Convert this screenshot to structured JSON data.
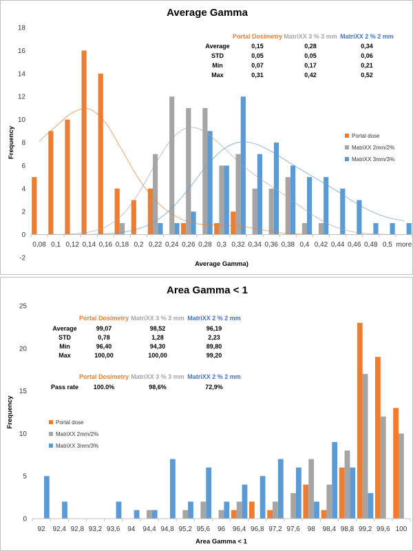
{
  "chart_data": [
    {
      "type": "bar",
      "title": "Average Gamma",
      "xlabel": "Average Gamma)",
      "ylabel": "Frequency",
      "ylim": [
        -2,
        18
      ],
      "yticks": [
        -2,
        0,
        2,
        4,
        6,
        8,
        10,
        12,
        14,
        16,
        18
      ],
      "grid": false,
      "legend_position": "right",
      "categories": [
        "0,08",
        "0,1",
        "0,12",
        "0,14",
        "0,16",
        "0,18",
        "0,2",
        "0,22",
        "0,24",
        "0,26",
        "0,28",
        "0,3",
        "0,32",
        "0,34",
        "0,36",
        "0,38",
        "0,4",
        "0,42",
        "0,44",
        "0,46",
        "0,48",
        "0,5",
        "more"
      ],
      "series": [
        {
          "name": "Portal dose",
          "color": "#ed7d31",
          "values": [
            5,
            9,
            10,
            16,
            14,
            4,
            3,
            4,
            0,
            1,
            0,
            1,
            2,
            0,
            0,
            0,
            0,
            0,
            0,
            0,
            0,
            0,
            0
          ]
        },
        {
          "name": "MatriXX  2mm/2%",
          "color": "#a5a5a5",
          "values": [
            0,
            0,
            0,
            0,
            0,
            1,
            0,
            7,
            12,
            11,
            11,
            6,
            7,
            4,
            4,
            5,
            1,
            1,
            0,
            0,
            0,
            0,
            0
          ]
        },
        {
          "name": "MatriXX 3mm/3%",
          "color": "#5b9bd5",
          "values": [
            0,
            0,
            0,
            0,
            0,
            0,
            0,
            1,
            1,
            2,
            9,
            6,
            12,
            7,
            8,
            6,
            5,
            5,
            4,
            3,
            1,
            1,
            1
          ]
        }
      ],
      "stats_table": {
        "headers": [
          "",
          "Portal Dosimetry",
          "MatriXX 3 % 3 mm",
          "MatriXX 2 % 2 mm"
        ],
        "header_colors": [
          "",
          "#ed7d31",
          "#a5a5a5",
          "#4472c4"
        ],
        "rows": [
          [
            "Average",
            "0,15",
            "0,28",
            "0,34"
          ],
          [
            "STD",
            "0,05",
            "0,05",
            "0,06"
          ],
          [
            "Min",
            "0,07",
            "0,17",
            "0,21"
          ],
          [
            "Max",
            "0,31",
            "0,42",
            "0,52"
          ]
        ]
      }
    },
    {
      "type": "bar",
      "title": "Area Gamma < 1",
      "xlabel": "Area Gamma < 1",
      "ylabel": "Frequency",
      "ylim": [
        0,
        25
      ],
      "yticks": [
        0,
        5,
        10,
        15,
        20,
        25
      ],
      "grid": false,
      "legend_position": "left",
      "categories": [
        "92",
        "92,4",
        "92,8",
        "93,2",
        "93,6",
        "94",
        "94,4",
        "94,8",
        "95,2",
        "95,6",
        "96",
        "96,4",
        "96,8",
        "97,2",
        "97,6",
        "98",
        "98,4",
        "98,8",
        "99,2",
        "99,6",
        "100"
      ],
      "series": [
        {
          "name": "Portal dose",
          "color": "#ed7d31",
          "values": [
            0,
            0,
            0,
            0,
            0,
            0,
            0,
            0,
            0,
            0,
            0,
            1,
            2,
            1,
            0,
            4,
            1,
            6,
            23,
            19,
            13
          ]
        },
        {
          "name": "MatriXX  2mm/2%",
          "color": "#a5a5a5",
          "values": [
            0,
            0,
            0,
            0,
            0,
            0,
            1,
            0,
            1,
            2,
            1,
            2,
            0,
            2,
            3,
            7,
            4,
            8,
            17,
            12,
            10
          ]
        },
        {
          "name": "MatriXX 3mm/3%",
          "color": "#5b9bd5",
          "values": [
            5,
            2,
            0,
            0,
            2,
            1,
            1,
            7,
            2,
            6,
            2,
            4,
            5,
            7,
            6,
            2,
            9,
            6,
            3,
            0,
            0
          ]
        }
      ],
      "stats_table": {
        "headers": [
          "",
          "Portal Dosimetry",
          "MatriXX 3 % 3 mm",
          "MatriXX 2 % 2 mm"
        ],
        "header_colors": [
          "",
          "#ed7d31",
          "#a5a5a5",
          "#4472c4"
        ],
        "rows": [
          [
            "Average",
            "99,07",
            "98,52",
            "96,19"
          ],
          [
            "STD",
            "0,78",
            "1,28",
            "2,23"
          ],
          [
            "Min",
            "96,40",
            "94,30",
            "89,80"
          ],
          [
            "Max",
            "100,00",
            "100,00",
            "99,20"
          ]
        ]
      },
      "pass_table": {
        "headers": [
          "",
          "Portal Dosimetry",
          "MatriXX 3 % 3 mm",
          "MatriXX 2 % 2 mm"
        ],
        "header_colors": [
          "",
          "#ed7d31",
          "#a5a5a5",
          "#4472c4"
        ],
        "rows": [
          [
            "Pass rate",
            "100.0%",
            "98,6%",
            "72,9%"
          ]
        ]
      }
    }
  ]
}
